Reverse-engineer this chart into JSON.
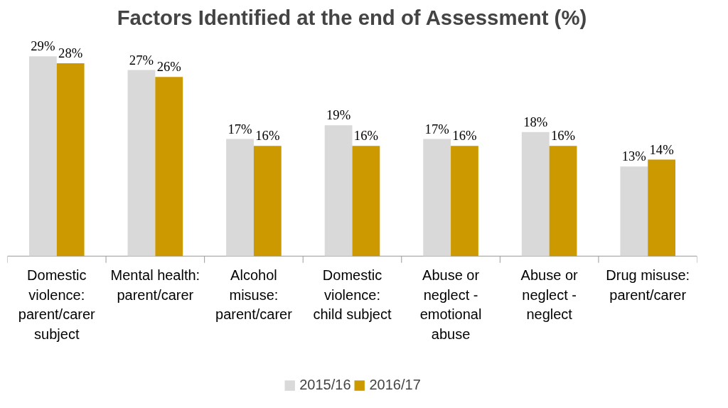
{
  "chart_data": {
    "type": "bar",
    "title": "Factors Identified at the end of Assessment (%)",
    "categories": [
      "Domestic violence: parent/carer subject",
      "Mental health: parent/carer",
      "Alcohol misuse: parent/carer",
      "Domestic violence: child subject",
      "Abuse or neglect - emotional abuse",
      "Abuse or neglect - neglect",
      "Drug misuse: parent/carer"
    ],
    "series": [
      {
        "name": "2015/16",
        "color": "#d9d9d9",
        "values": [
          29,
          27,
          17,
          19,
          17,
          18,
          13
        ],
        "value_labels": [
          "29%",
          "27%",
          "17%",
          "19%",
          "17%",
          "18%",
          "13%"
        ]
      },
      {
        "name": "2016/17",
        "color": "#cc9900",
        "values": [
          28,
          26,
          16,
          16,
          16,
          16,
          14
        ],
        "value_labels": [
          "28%",
          "26%",
          "16%",
          "16%",
          "16%",
          "16%",
          "14%"
        ]
      }
    ],
    "tick_labels": "x",
    "legend": "bottom"
  }
}
